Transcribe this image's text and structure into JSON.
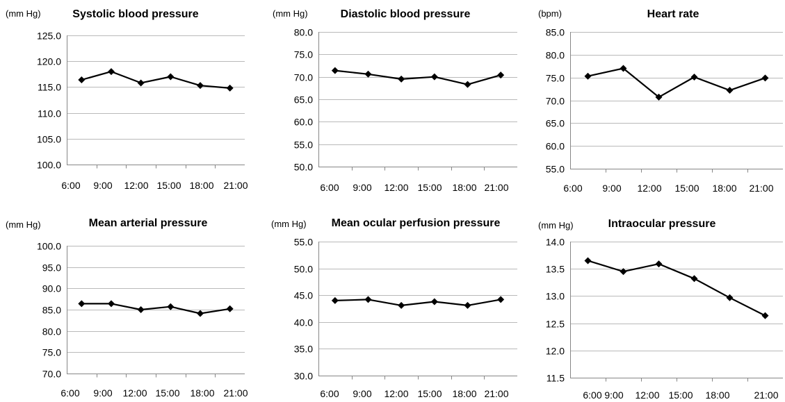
{
  "chart_data": [
    {
      "type": "line",
      "title": "Systolic blood pressure",
      "unit": "(mm Hg)",
      "categories": [
        "6:00",
        "9:00",
        "12:00",
        "15:00",
        "18:00",
        "21:00"
      ],
      "values": [
        116.4,
        118.0,
        115.8,
        117.0,
        115.3,
        114.8
      ],
      "ylim": [
        100,
        125
      ],
      "yticks": [
        "100.0",
        "105.0",
        "110.0",
        "115.0",
        "120.0",
        "125.0"
      ],
      "grid": true,
      "marker": "diamond",
      "color": "#000000"
    },
    {
      "type": "line",
      "title": "Diastolic blood pressure",
      "unit": "(mm Hg)",
      "categories": [
        "6:00",
        "9:00",
        "12:00",
        "15:00",
        "18:00",
        "21:00"
      ],
      "values": [
        71.4,
        70.6,
        69.5,
        70.0,
        68.3,
        70.4
      ],
      "ylim": [
        50,
        80
      ],
      "yticks": [
        "50.0",
        "55.0",
        "60.0",
        "65.0",
        "70.0",
        "75.0",
        "80.0"
      ],
      "grid": true,
      "marker": "diamond",
      "color": "#000000"
    },
    {
      "type": "line",
      "title": "Heart rate",
      "unit": "(bpm)",
      "categories": [
        "6:00",
        "9:00",
        "12:00",
        "15:00",
        "18:00",
        "21:00"
      ],
      "values": [
        75.3,
        77.0,
        70.7,
        75.1,
        72.2,
        74.9
      ],
      "ylim": [
        55,
        85
      ],
      "yticks": [
        "55.0",
        "60.0",
        "65.0",
        "70.0",
        "75.0",
        "80.0",
        "85.0"
      ],
      "grid": true,
      "marker": "diamond",
      "color": "#000000"
    },
    {
      "type": "line",
      "title": "Mean arterial pressure",
      "unit": "(mm Hg)",
      "categories": [
        "6:00",
        "9:00",
        "12:00",
        "15:00",
        "18:00",
        "21:00"
      ],
      "values": [
        86.4,
        86.4,
        85.0,
        85.7,
        84.1,
        85.2
      ],
      "ylim": [
        70,
        100
      ],
      "yticks": [
        "70.0",
        "75.0",
        "80.0",
        "85.0",
        "90.0",
        "95.0",
        "100.0"
      ],
      "grid": true,
      "marker": "diamond",
      "color": "#000000"
    },
    {
      "type": "line",
      "title": "Mean ocular perfusion pressure",
      "unit": "(mm Hg)",
      "categories": [
        "6:00",
        "9:00",
        "12:00",
        "15:00",
        "18:00",
        "21:00"
      ],
      "values": [
        44.0,
        44.2,
        43.1,
        43.8,
        43.1,
        44.2
      ],
      "ylim": [
        30,
        55
      ],
      "yticks": [
        "30.0",
        "35.0",
        "40.0",
        "45.0",
        "50.0",
        "55.0"
      ],
      "grid": true,
      "marker": "diamond",
      "color": "#000000"
    },
    {
      "type": "line",
      "title": "Intraocular pressure",
      "unit": "(mm Hg)",
      "categories": [
        "6:00",
        "9:00",
        "12:00",
        "15:00",
        "18:00",
        "21:00"
      ],
      "values": [
        13.65,
        13.45,
        13.59,
        13.32,
        12.97,
        12.64
      ],
      "ylim": [
        11.5,
        14.0
      ],
      "yticks": [
        "11.5",
        "12.0",
        "12.5",
        "13.0",
        "13.5",
        "14.0"
      ],
      "grid": true,
      "marker": "diamond",
      "color": "#000000"
    }
  ]
}
